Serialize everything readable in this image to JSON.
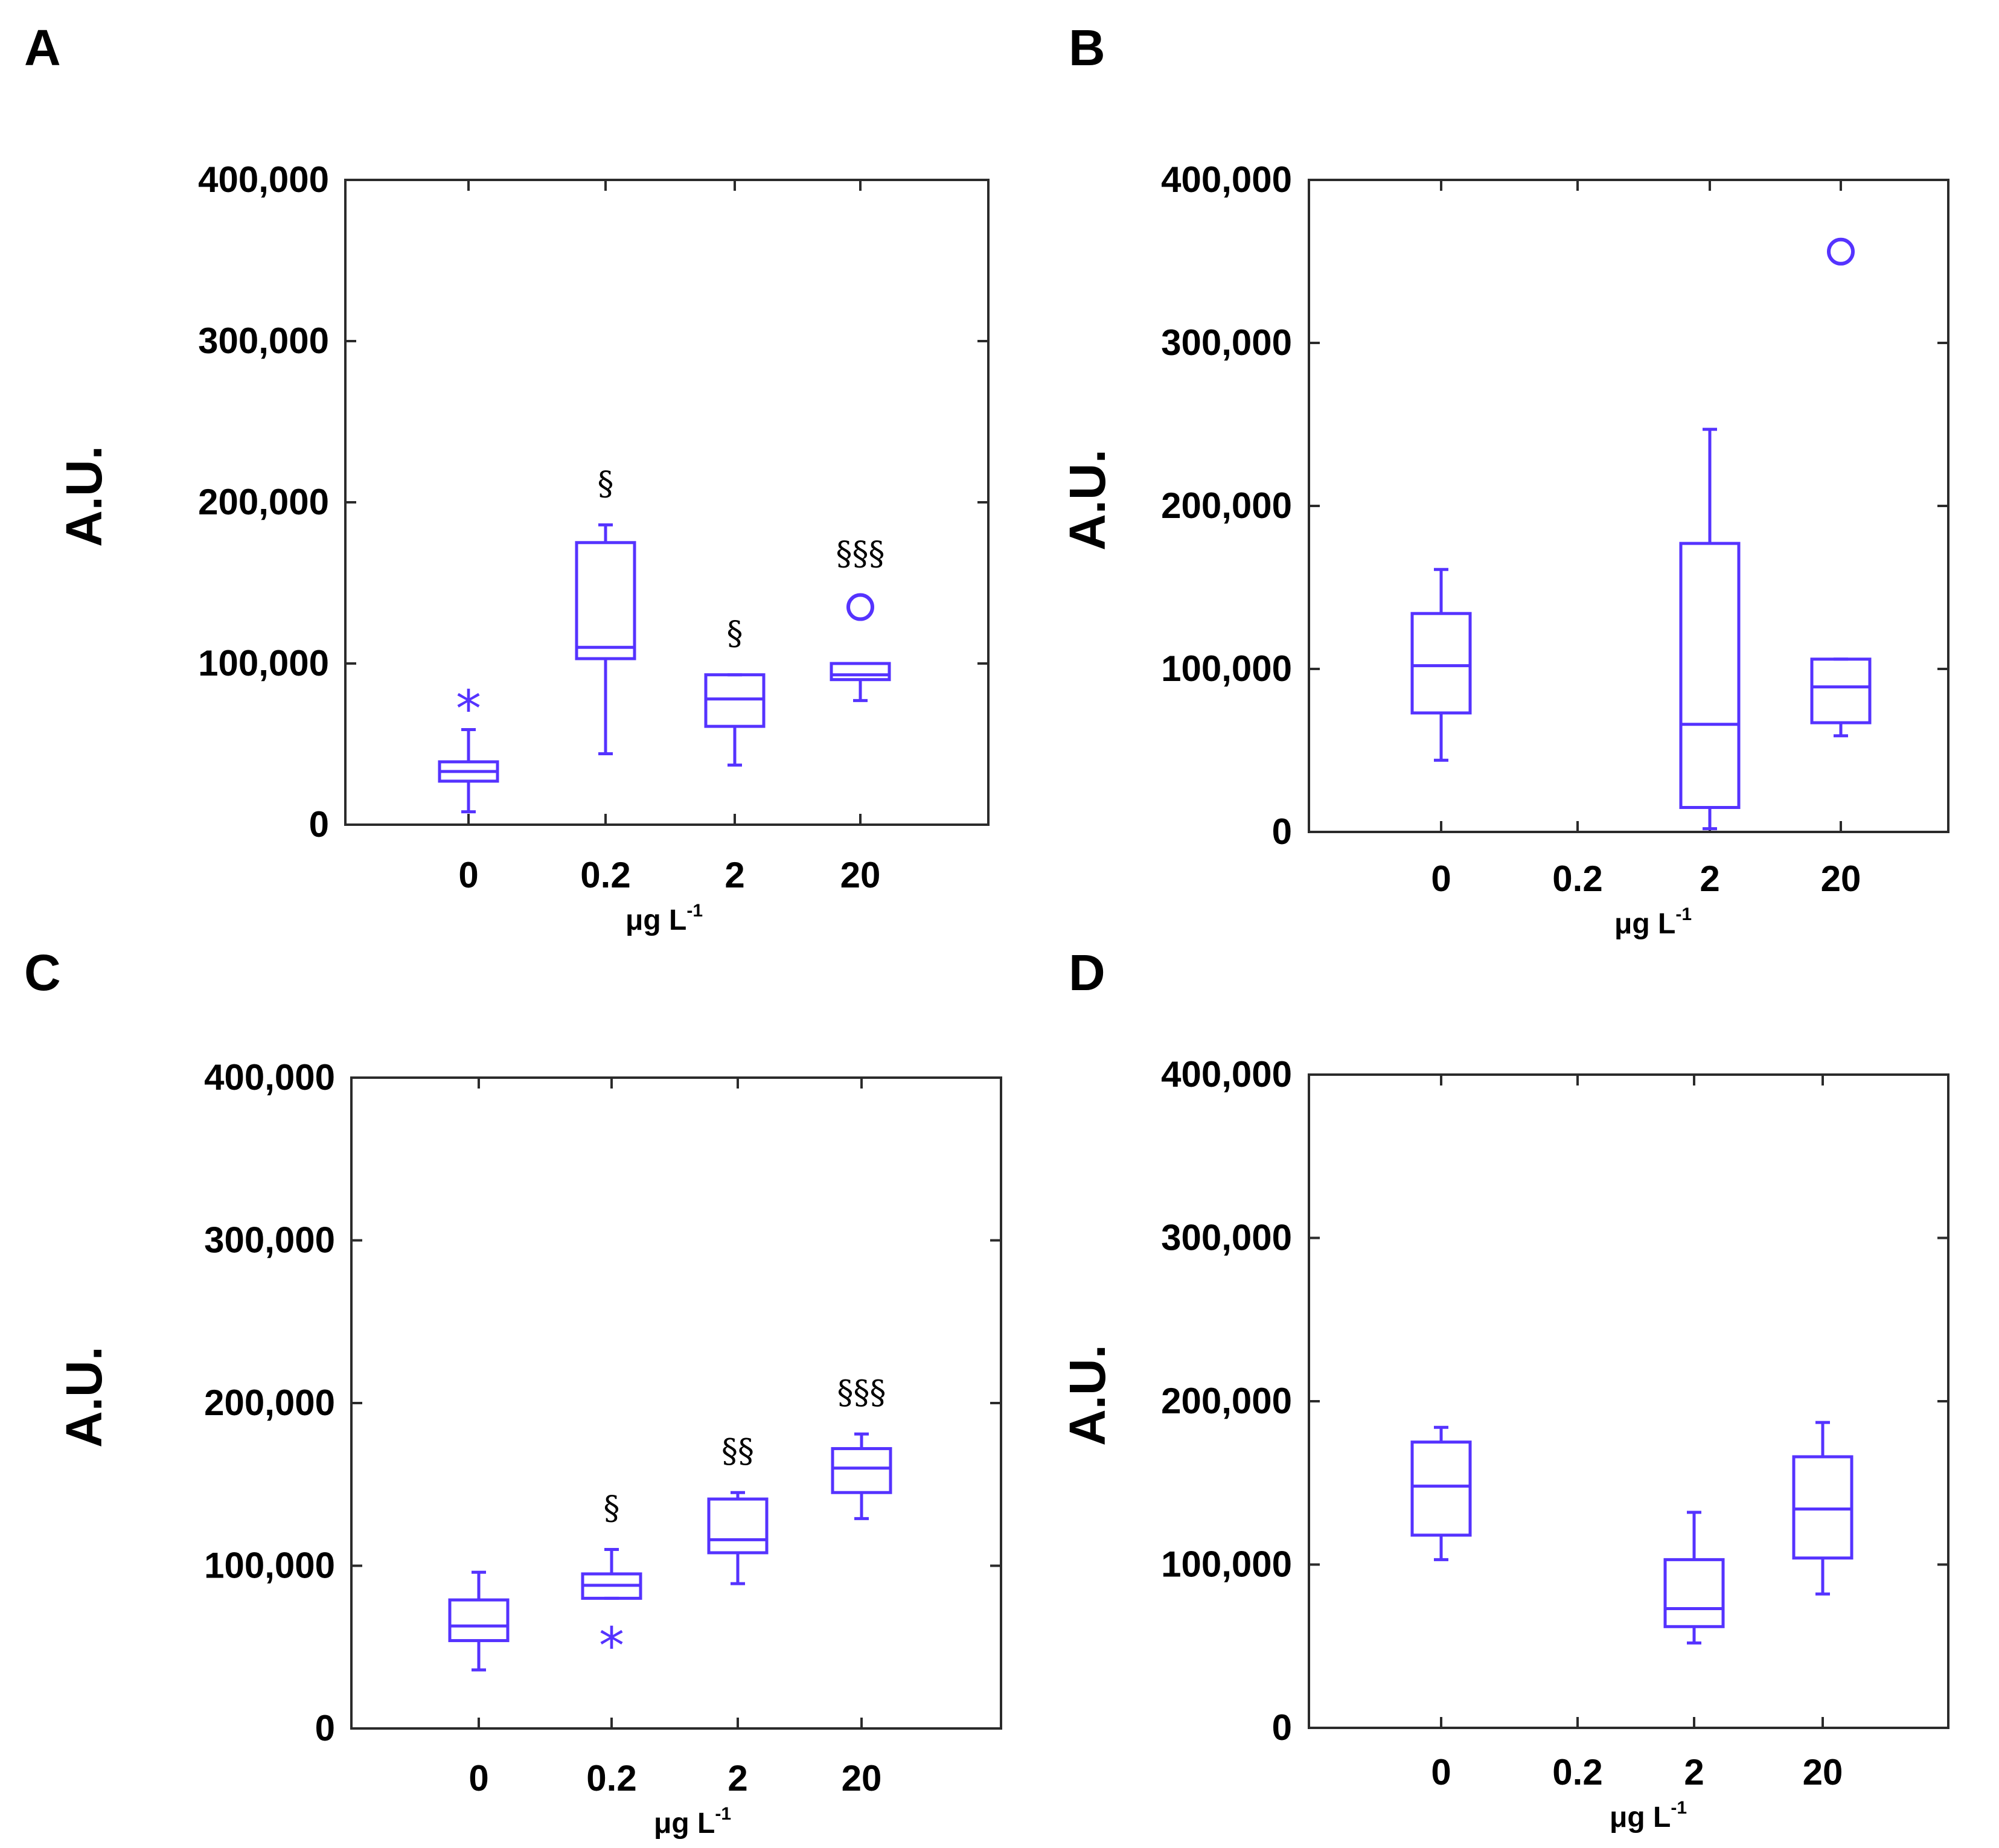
{
  "colors": {
    "box": "#5533ff",
    "axis": "#2b2b2b",
    "text": "#000000"
  },
  "chart_data": [
    {
      "panel": "A",
      "type": "box",
      "ylabel": "A.U.",
      "xlabel": "μg L",
      "xlabel_sup": "-1",
      "ylim": [
        0,
        400000
      ],
      "yticks": [
        0,
        100000,
        200000,
        300000,
        400000
      ],
      "ytick_labels": [
        "0",
        "100,000",
        "200,000",
        "300,000",
        "400,000"
      ],
      "categories": [
        "0",
        "0.2",
        "2",
        "20"
      ],
      "boxes": [
        {
          "category": "0",
          "min": 8000,
          "q1": 27000,
          "median": 33000,
          "q3": 39000,
          "max": 59000,
          "outliers": [
            {
              "value": 73000,
              "marker": "star"
            }
          ],
          "significance": ""
        },
        {
          "category": "0.2",
          "min": 44000,
          "q1": 103000,
          "median": 110000,
          "q3": 175000,
          "max": 186000,
          "outliers": [],
          "significance": "§"
        },
        {
          "category": "2",
          "min": 37000,
          "q1": 61000,
          "median": 78000,
          "q3": 93000,
          "max": 93000,
          "outliers": [],
          "significance": "§"
        },
        {
          "category": "20",
          "min": 77000,
          "q1": 90000,
          "median": 93000,
          "q3": 100000,
          "max": 100000,
          "outliers": [
            {
              "value": 135000,
              "marker": "circle"
            }
          ],
          "significance": "§§§"
        }
      ]
    },
    {
      "panel": "B",
      "type": "box",
      "ylabel": "A.U.",
      "xlabel": "μg L",
      "xlabel_sup": "-1",
      "ylim": [
        0,
        400000
      ],
      "yticks": [
        0,
        100000,
        200000,
        300000,
        400000
      ],
      "ytick_labels": [
        "0",
        "100,000",
        "200,000",
        "300,000",
        "400,000"
      ],
      "categories": [
        "0",
        "0.2",
        "2",
        "20"
      ],
      "boxes": [
        {
          "category": "0",
          "min": 44000,
          "q1": 73000,
          "median": 102000,
          "q3": 134000,
          "max": 161000,
          "outliers": [],
          "significance": ""
        },
        {
          "category": "2",
          "min": 2000,
          "q1": 15000,
          "median": 66000,
          "q3": 177000,
          "max": 247000,
          "outliers": [],
          "significance": ""
        },
        {
          "category": "20",
          "min": 59000,
          "q1": 67000,
          "median": 89000,
          "q3": 106000,
          "max": 106000,
          "outliers": [
            {
              "value": 356000,
              "marker": "circle"
            }
          ],
          "significance": ""
        }
      ]
    },
    {
      "panel": "C",
      "type": "box",
      "ylabel": "A.U.",
      "xlabel": "μg L",
      "xlabel_sup": "-1",
      "ylim": [
        0,
        400000
      ],
      "yticks": [
        0,
        100000,
        200000,
        300000,
        400000
      ],
      "ytick_labels": [
        "0",
        "100,000",
        "200,000",
        "300,000",
        "400,000"
      ],
      "categories": [
        "0",
        "0.2",
        "2",
        "20"
      ],
      "boxes": [
        {
          "category": "0",
          "min": 36000,
          "q1": 54000,
          "median": 63000,
          "q3": 79000,
          "max": 96000,
          "outliers": [],
          "significance": ""
        },
        {
          "category": "0.2",
          "min": 80000,
          "q1": 80000,
          "median": 88000,
          "q3": 95000,
          "max": 110000,
          "outliers": [
            {
              "value": 52000,
              "marker": "star"
            }
          ],
          "significance": "§"
        },
        {
          "category": "2",
          "min": 89000,
          "q1": 108000,
          "median": 116000,
          "q3": 141000,
          "max": 145000,
          "outliers": [],
          "significance": "§§"
        },
        {
          "category": "20",
          "min": 129000,
          "q1": 145000,
          "median": 160000,
          "q3": 172000,
          "max": 181000,
          "outliers": [],
          "significance": "§§§"
        }
      ]
    },
    {
      "panel": "D",
      "type": "box",
      "ylabel": "A.U.",
      "xlabel": "μg L",
      "xlabel_sup": "-1",
      "ylim": [
        0,
        400000
      ],
      "yticks": [
        0,
        100000,
        200000,
        300000,
        400000
      ],
      "ytick_labels": [
        "0",
        "100,000",
        "200,000",
        "300,000",
        "400,000"
      ],
      "categories": [
        "0",
        "0.2",
        "2",
        "20"
      ],
      "boxes": [
        {
          "category": "0",
          "min": 103000,
          "q1": 118000,
          "median": 148000,
          "q3": 175000,
          "max": 184000,
          "outliers": [],
          "significance": ""
        },
        {
          "category": "2",
          "min": 52000,
          "q1": 62000,
          "median": 73000,
          "q3": 103000,
          "max": 132000,
          "outliers": [],
          "significance": ""
        },
        {
          "category": "20",
          "min": 82000,
          "q1": 104000,
          "median": 134000,
          "q3": 166000,
          "max": 187000,
          "outliers": [],
          "significance": ""
        }
      ]
    }
  ]
}
